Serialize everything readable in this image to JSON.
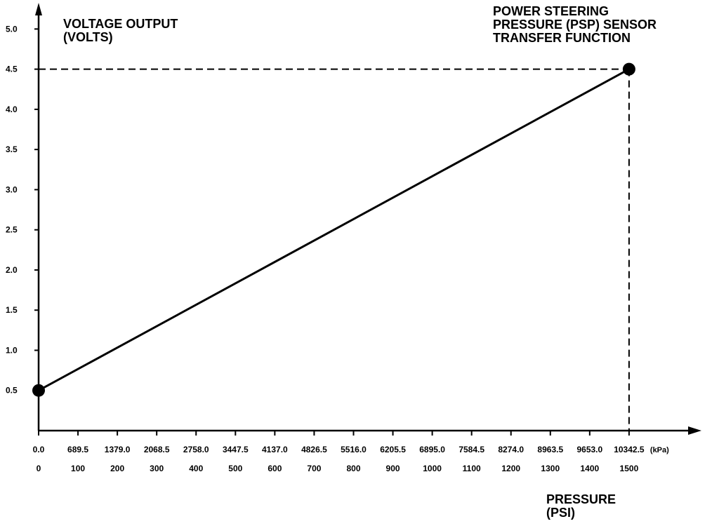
{
  "chart_data": {
    "type": "line",
    "title": [
      "POWER STEERING",
      "PRESSURE (PSP) SENSOR",
      "TRANSFER FUNCTION"
    ],
    "y_label": [
      "VOLTAGE OUTPUT",
      "(VOLTS)"
    ],
    "x_label": [
      "PRESSURE",
      "(PSI)"
    ],
    "x2_unit": "(kPa)",
    "x": [
      0,
      1500
    ],
    "series": [
      {
        "color": "#000000",
        "values": [
          0.5,
          4.5
        ]
      }
    ],
    "xlim": [
      0,
      1650
    ],
    "xticks": [
      0,
      100,
      200,
      300,
      400,
      500,
      600,
      700,
      800,
      900,
      1000,
      1100,
      1200,
      1300,
      1400,
      1500
    ],
    "x2lim": [
      0,
      11376.75
    ],
    "x2ticks": [
      {
        "value": 0,
        "label": "0.0"
      },
      689.5,
      {
        "value": 1379,
        "label": "1379.0"
      },
      2068.5,
      {
        "value": 2758,
        "label": "2758.0"
      },
      3447.5,
      {
        "value": 4137,
        "label": "4137.0"
      },
      4826.5,
      {
        "value": 5516,
        "label": "5516.0"
      },
      6205.5,
      {
        "value": 6895,
        "label": "6895.0"
      },
      7584.5,
      {
        "value": 8274,
        "label": "8274.0"
      },
      8963.5,
      {
        "value": 9653,
        "label": "9653.0"
      },
      10342.5
    ],
    "ylim": [
      0,
      5.3
    ],
    "yticks": [
      0.5,
      {
        "value": 1,
        "label": "1.0"
      },
      1.5,
      {
        "value": 2,
        "label": "2.0"
      },
      2.5,
      {
        "value": 3,
        "label": "3.0"
      },
      3.5,
      {
        "value": 4,
        "label": "4.0"
      },
      4.5,
      {
        "value": 5,
        "label": "5.0"
      }
    ]
  }
}
